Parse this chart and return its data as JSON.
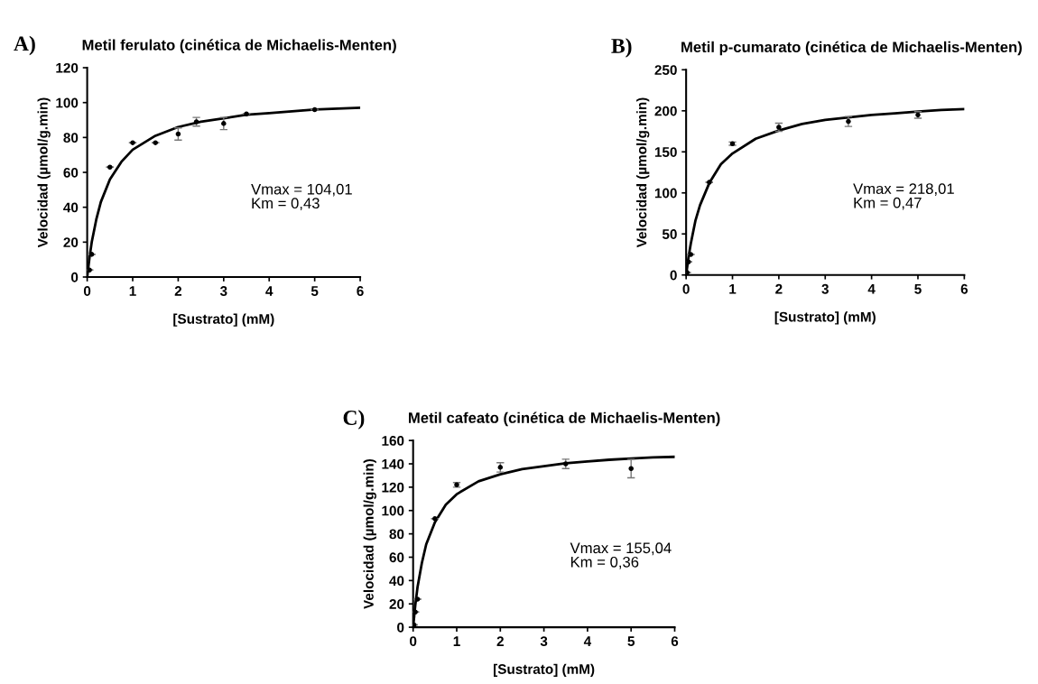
{
  "chart_data": [
    {
      "type": "scatter",
      "title": "Metil ferulato (cinética de Michaelis-Menten)",
      "xlabel": "[Sustrato] (mM)",
      "ylabel": "Velocidad (µmol/g.min)",
      "annotations": [
        "A)",
        "Vmax = 104,01\nKm = 0,43"
      ],
      "xlim": [
        0,
        6
      ],
      "xticks": [
        0,
        1,
        2,
        3,
        4,
        5,
        6
      ],
      "ylim": [
        0,
        120
      ],
      "yticks": [
        0,
        20,
        40,
        60,
        80,
        100,
        120
      ],
      "marker": "circle",
      "legend": false,
      "grid": false,
      "series": [
        {
          "color": "#000000",
          "x": [
            0.05,
            0.1,
            0.5,
            1,
            1.5,
            2,
            2.4,
            3,
            3.5,
            5
          ],
          "values": [
            4,
            13,
            63,
            77,
            77,
            82,
            89,
            88,
            93.5,
            96
          ],
          "errors": [
            null,
            null,
            null,
            null,
            null,
            3.5,
            2.5,
            3.5,
            null,
            null
          ]
        },
        {
          "type": "line",
          "marker": "none",
          "color": "#000000",
          "x": [
            0,
            0.05,
            0.1,
            0.2,
            0.3,
            0.5,
            0.75,
            1,
            1.5,
            2,
            2.5,
            3,
            3.5,
            4,
            4.5,
            5,
            5.5,
            6
          ],
          "values": [
            0,
            11,
            20,
            33,
            43,
            56,
            66,
            73,
            81,
            86,
            89,
            91,
            93,
            94,
            95,
            96,
            96.5,
            97
          ]
        }
      ]
    },
    {
      "type": "scatter",
      "title": "Metil p-cumarato (cinética de Michaelis-Menten)",
      "xlabel": "[Sustrato] (mM)",
      "ylabel": "Velocidad (µmol/g.min)",
      "annotations": [
        "B)",
        "Vmax = 218,01\nKm = 0,47"
      ],
      "xlim": [
        0,
        6
      ],
      "xticks": [
        0,
        1,
        2,
        3,
        4,
        5,
        6
      ],
      "ylim": [
        0,
        250
      ],
      "yticks": [
        0,
        50,
        100,
        150,
        200,
        250
      ],
      "marker": "circle",
      "legend": false,
      "grid": false,
      "series": [
        {
          "color": "#000000",
          "x": [
            0.02,
            0.05,
            0.1,
            0.5,
            1,
            2,
            3.5,
            5
          ],
          "values": [
            3,
            16,
            25,
            113,
            160,
            180,
            187,
            195
          ],
          "errors": [
            null,
            null,
            null,
            null,
            2,
            5,
            6,
            4
          ]
        },
        {
          "type": "line",
          "marker": "none",
          "color": "#000000",
          "x": [
            0,
            0.05,
            0.1,
            0.2,
            0.3,
            0.5,
            0.75,
            1,
            1.5,
            2,
            2.5,
            3,
            3.5,
            4,
            4.5,
            5,
            5.5,
            6
          ],
          "values": [
            0,
            21,
            38,
            66,
            85,
            112,
            135,
            148,
            166,
            176,
            184,
            189,
            192,
            195,
            197,
            199,
            201,
            202
          ]
        }
      ]
    },
    {
      "type": "scatter",
      "title": "Metil cafeato (cinética de Michaelis-Menten)",
      "xlabel": "[Sustrato] (mM)",
      "ylabel": "Velocidad (µmol/g.min)",
      "annotations": [
        "C)",
        "Vmax = 155,04\nKm = 0,36"
      ],
      "xlim": [
        0,
        6
      ],
      "xticks": [
        0,
        1,
        2,
        3,
        4,
        5,
        6
      ],
      "ylim": [
        0,
        160
      ],
      "yticks": [
        0,
        20,
        40,
        60,
        80,
        100,
        120,
        140,
        160
      ],
      "marker": "circle",
      "legend": false,
      "grid": false,
      "series": [
        {
          "color": "#000000",
          "x": [
            0.02,
            0.05,
            0.1,
            0.5,
            1,
            2,
            3.5,
            5
          ],
          "values": [
            2,
            13,
            24,
            93,
            122,
            137,
            140,
            136
          ],
          "errors": [
            null,
            null,
            null,
            null,
            2,
            4,
            4,
            8
          ]
        },
        {
          "type": "line",
          "marker": "none",
          "color": "#000000",
          "x": [
            0,
            0.05,
            0.1,
            0.2,
            0.3,
            0.5,
            0.75,
            1,
            1.5,
            2,
            2.5,
            3,
            3.5,
            4,
            4.5,
            5,
            5.5,
            6
          ],
          "values": [
            0,
            19,
            34,
            55,
            71,
            90,
            105,
            114,
            125,
            131,
            135.5,
            138,
            140.5,
            142,
            143.5,
            144.5,
            145.5,
            146
          ]
        }
      ]
    }
  ]
}
